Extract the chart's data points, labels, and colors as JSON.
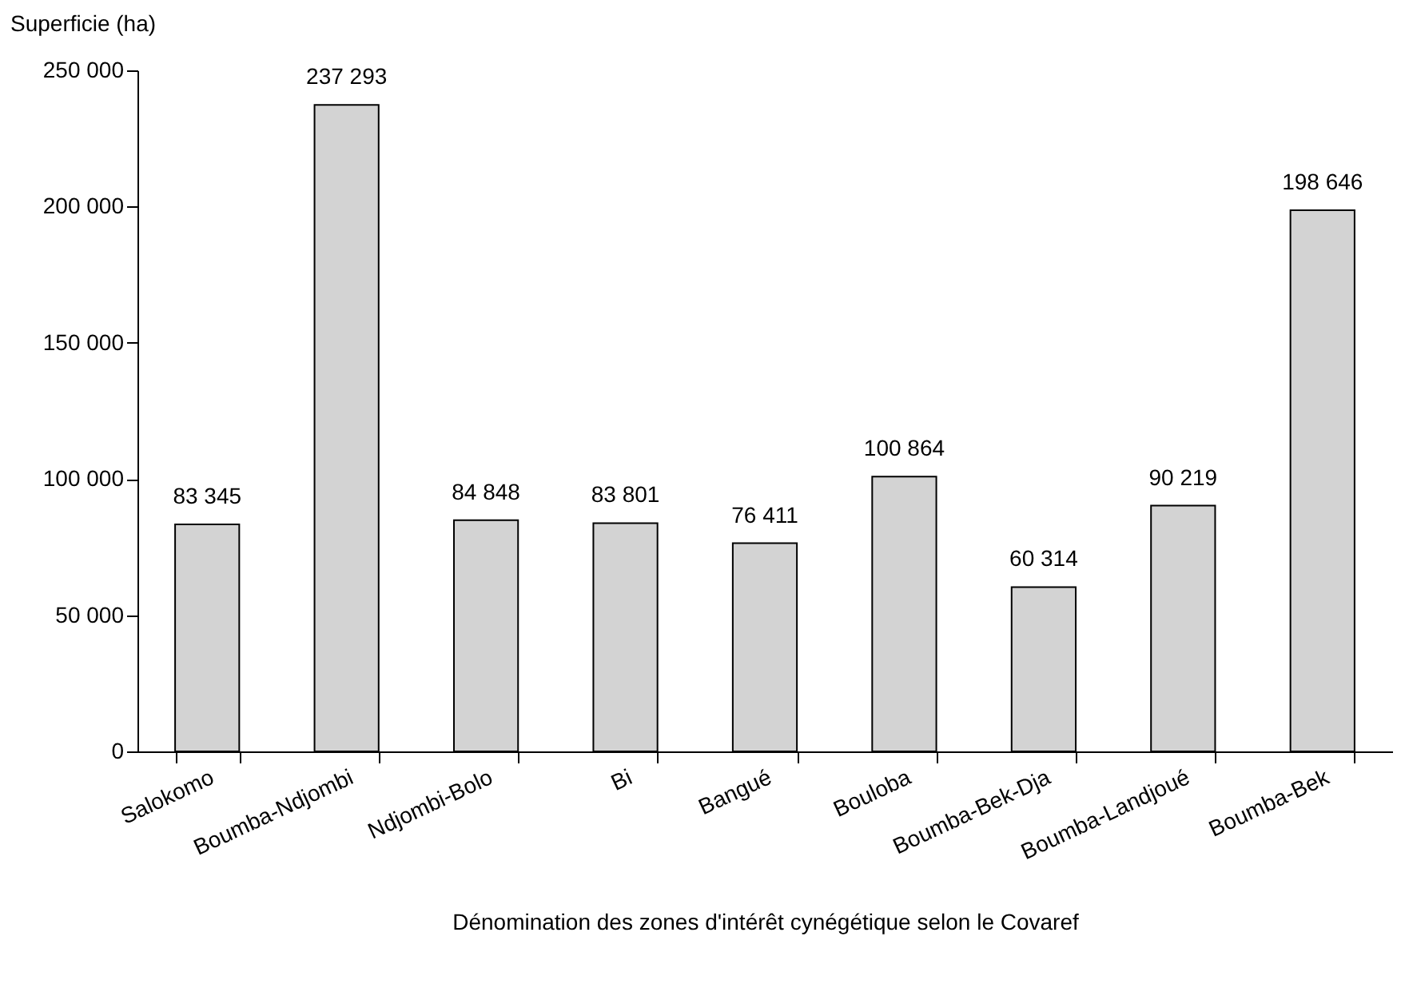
{
  "chart_data": {
    "type": "bar",
    "xlabel": "Dénomination des zones d'intérêt cynégétique selon le Covaref",
    "ylabel": "Superficie (ha)",
    "categories": [
      "Salokomo",
      "Boumba-Ndjombi",
      "Ndjombi-Bolo",
      "Bi",
      "Bangué",
      "Bouloba",
      "Boumba-Bek-Dja",
      "Boumba-Landjoué",
      "Boumba-Bek"
    ],
    "values": [
      83345,
      237293,
      84848,
      83801,
      76411,
      100864,
      60314,
      90219,
      198646
    ],
    "value_labels": [
      "83 345",
      "237 293",
      "84 848",
      "83 801",
      "76 411",
      "100 864",
      "60 314",
      "90 219",
      "198 646"
    ],
    "color": "#d3d3d3",
    "ylim": [
      0,
      250000
    ],
    "yticks": [
      {
        "value": 0,
        "label": "0"
      },
      {
        "value": 50000,
        "label": "50 000"
      },
      {
        "value": 100000,
        "label": "100 000"
      },
      {
        "value": 150000,
        "label": "150 000"
      },
      {
        "value": 200000,
        "label": "200 000"
      },
      {
        "value": 250000,
        "label": "250 000"
      }
    ],
    "grid": false
  }
}
